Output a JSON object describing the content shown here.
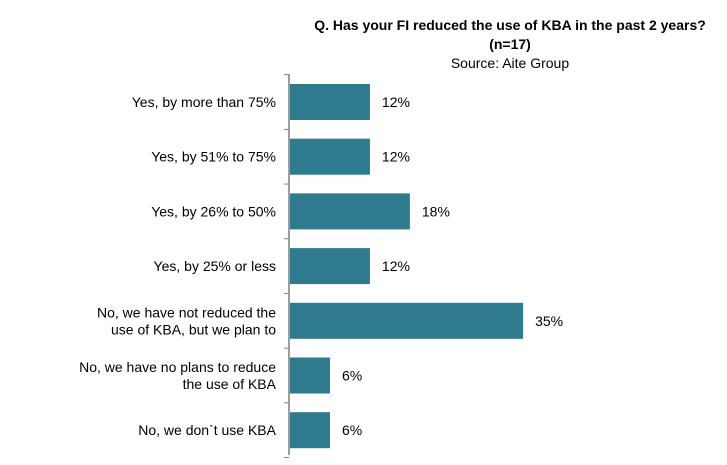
{
  "chart_data": {
    "type": "bar",
    "orientation": "horizontal",
    "title": "Q. Has your FI reduced the use of KBA in the past 2 years?",
    "title_line2": "(n=17)",
    "subtitle": "Source: Aite Group",
    "categories": [
      [
        "Yes, by more than 75%"
      ],
      [
        "Yes, by 51% to 75%"
      ],
      [
        "Yes, by 26% to 50%"
      ],
      [
        "Yes, by 25% or less"
      ],
      [
        "No, we have not reduced the",
        "use of KBA, but we plan to"
      ],
      [
        "No, we have no plans to reduce",
        "the use of KBA"
      ],
      [
        "No, we don`t use KBA"
      ]
    ],
    "values": [
      12,
      12,
      18,
      12,
      35,
      6,
      6
    ],
    "value_labels": [
      "12%",
      "12%",
      "18%",
      "12%",
      "35%",
      "6%",
      "6%"
    ],
    "xlim": [
      0,
      40
    ],
    "grid": false,
    "bar_color": "#2e7a8e",
    "axis_color": "#7f7f7f"
  }
}
